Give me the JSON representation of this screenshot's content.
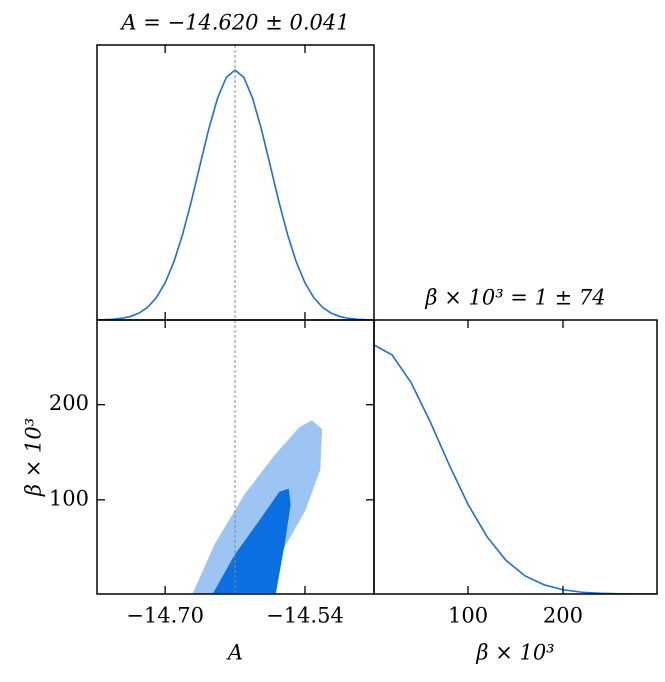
{
  "chart_data": [
    {
      "type": "line",
      "title": "A = −14.620 ± 0.041",
      "color": "#1a6fe0",
      "x": [
        -14.78,
        -14.77,
        -14.76,
        -14.75,
        -14.74,
        -14.73,
        -14.72,
        -14.71,
        -14.7,
        -14.69,
        -14.68,
        -14.67,
        -14.66,
        -14.65,
        -14.64,
        -14.63,
        -14.62,
        -14.61,
        -14.6,
        -14.59,
        -14.58,
        -14.57,
        -14.56,
        -14.55,
        -14.54,
        -14.53,
        -14.52,
        -14.51,
        -14.5,
        -14.49,
        -14.48,
        -14.47,
        -14.46
      ],
      "values": [
        0.0005,
        0.0012,
        0.0029,
        0.0066,
        0.0138,
        0.0273,
        0.0511,
        0.0899,
        0.149,
        0.2328,
        0.3427,
        0.4754,
        0.6213,
        0.7651,
        0.8878,
        0.9707,
        1,
        0.9707,
        0.8878,
        0.7651,
        0.6213,
        0.4754,
        0.3427,
        0.2328,
        0.149,
        0.0899,
        0.0511,
        0.0273,
        0.0138,
        0.0066,
        0.0029,
        0.0012,
        0.0005
      ],
      "xlim": [
        -14.778,
        -14.461
      ],
      "ylim": [
        0,
        1.1
      ],
      "xticks": [
        -14.7,
        -14.54
      ],
      "vline": -14.62
    },
    {
      "type": "contour",
      "xlabel": "A",
      "ylabel": "β × 10³",
      "xlim": [
        -14.778,
        -14.461
      ],
      "ylim": [
        1,
        289
      ],
      "xticks": [
        {
          "value": -14.7,
          "label": "−14.70"
        },
        {
          "value": -14.54,
          "label": "−14.54"
        }
      ],
      "yticks": [
        100,
        200
      ],
      "vline": -14.62,
      "hline": 1,
      "series": [
        {
          "color": "#9cc5f4",
          "x": [
            -14.668,
            -14.643,
            -14.609,
            -14.574,
            -14.546,
            -14.532,
            -14.521,
            -14.523,
            -14.54,
            -14.569,
            -14.582
          ],
          "values": [
            1,
            53,
            105,
            147,
            176,
            183,
            174,
            132,
            89,
            42,
            1
          ]
        },
        {
          "color": "#0a6fe0",
          "x": [
            -14.645,
            -14.62,
            -14.591,
            -14.569,
            -14.559,
            -14.557,
            -14.563,
            -14.574
          ],
          "values": [
            1,
            42,
            79,
            108,
            111,
            95,
            58,
            1
          ]
        }
      ]
    },
    {
      "type": "line",
      "title": "β × 10³ = 1 ± 74",
      "xlabel": "β × 10³",
      "color": "#1a6fe0",
      "x": [
        1,
        20,
        40,
        60,
        80,
        100,
        120,
        140,
        160,
        180,
        200,
        220,
        240,
        260,
        280,
        299
      ],
      "values": [
        1,
        0.96,
        0.849,
        0.693,
        0.52,
        0.36,
        0.23,
        0.135,
        0.073,
        0.037,
        0.017,
        0.007,
        0.003,
        0.001,
        0.0003,
        0.0001
      ],
      "xlim": [
        1,
        299
      ],
      "ylim": [
        0,
        1.1
      ],
      "xticks": [
        100,
        200
      ],
      "vline": 1
    }
  ]
}
